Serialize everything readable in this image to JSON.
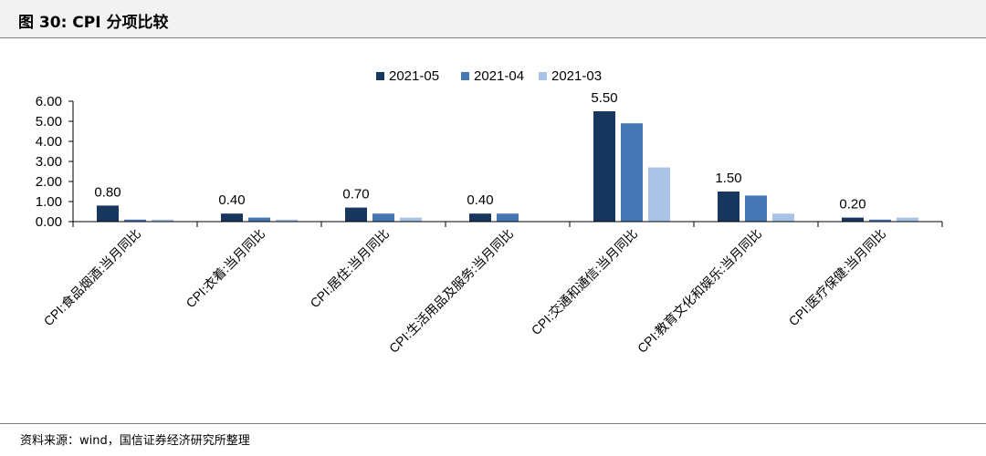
{
  "figure": {
    "title": "图 30:  CPI 分项比较",
    "source": "资料来源：wind，国信证券经济研究所整理"
  },
  "colors": {
    "series": [
      "#17375e",
      "#4577b5",
      "#a9c4e6"
    ],
    "axis": "#000000",
    "header_bg": "#f2f2f2"
  },
  "chart_data": {
    "type": "bar",
    "title": "",
    "xlabel": "",
    "ylabel": "",
    "ylim": [
      0,
      6
    ],
    "yticks": [
      "0.00",
      "1.00",
      "2.00",
      "3.00",
      "4.00",
      "5.00",
      "6.00"
    ],
    "grid": false,
    "legend_position": "top-center",
    "categories": [
      "CPI:食品烟酒:当月同比",
      "CPI:衣着:当月同比",
      "CPI:居住:当月同比",
      "CPI:生活用品及服务:当月同比",
      "CPI:交通和通信:当月同比",
      "CPI:教育文化和娱乐:当月同比",
      "CPI:医疗保健:当月同比"
    ],
    "series": [
      {
        "name": "2021-05",
        "values": [
          0.8,
          0.4,
          0.7,
          0.4,
          5.5,
          1.5,
          0.2
        ]
      },
      {
        "name": "2021-04",
        "values": [
          0.1,
          0.2,
          0.4,
          0.4,
          4.9,
          1.3,
          0.1
        ]
      },
      {
        "name": "2021-03",
        "values": [
          0.1,
          0.1,
          0.2,
          0.0,
          2.7,
          0.4,
          0.2
        ]
      }
    ],
    "data_labels": [
      "0.80",
      "0.40",
      "0.70",
      "0.40",
      "5.50",
      "1.50",
      "0.20"
    ]
  }
}
